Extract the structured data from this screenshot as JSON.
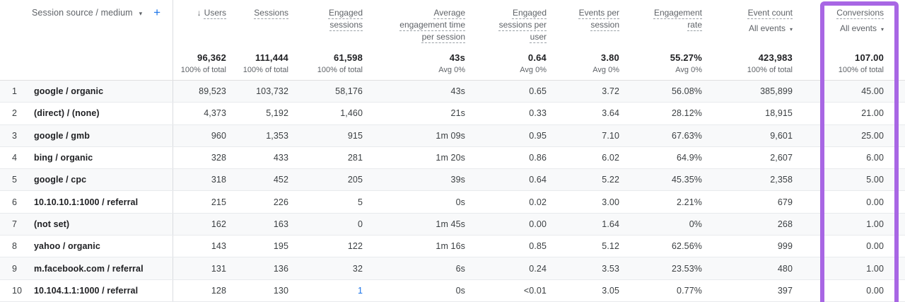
{
  "icons": {
    "caret_down": "▾",
    "plus": "+",
    "sort_desc": "↓"
  },
  "colors": {
    "annotation_purple": "#a866e4",
    "link_blue": "#1a73e8",
    "header_gray": "#5f6368",
    "text_dark": "#202124",
    "stripe_gray": "#f8f9fa"
  },
  "table": {
    "dimension_header": {
      "label": "Session source / medium"
    },
    "columns": [
      {
        "label": "Users",
        "sorted": true,
        "total": "96,362",
        "sub": "100% of total"
      },
      {
        "label": "Sessions",
        "total": "111,444",
        "sub": "100% of total"
      },
      {
        "label": "Engaged sessions",
        "total": "61,598",
        "sub": "100% of total"
      },
      {
        "label": "Average engagement time per session",
        "total": "43s",
        "sub": "Avg 0%"
      },
      {
        "label": "Engaged sessions per user",
        "total": "0.64",
        "sub": "Avg 0%"
      },
      {
        "label": "Events per session",
        "total": "3.80",
        "sub": "Avg 0%"
      },
      {
        "label": "Engagement rate",
        "total": "55.27%",
        "sub": "Avg 0%"
      },
      {
        "label": "Event count",
        "dropdown": "All events",
        "total": "423,983",
        "sub": "100% of total"
      },
      {
        "label": "Conversions",
        "dropdown": "All events",
        "total": "107.00",
        "sub": "100% of total",
        "highlighted": true
      }
    ],
    "rows": [
      {
        "index": "1",
        "dimension": "google / organic",
        "values": [
          "89,523",
          "103,732",
          "58,176",
          "43s",
          "0.65",
          "3.72",
          "56.08%",
          "385,899",
          "45.00"
        ]
      },
      {
        "index": "2",
        "dimension": "(direct) / (none)",
        "values": [
          "4,373",
          "5,192",
          "1,460",
          "21s",
          "0.33",
          "3.64",
          "28.12%",
          "18,915",
          "21.00"
        ]
      },
      {
        "index": "3",
        "dimension": "google / gmb",
        "values": [
          "960",
          "1,353",
          "915",
          "1m 09s",
          "0.95",
          "7.10",
          "67.63%",
          "9,601",
          "25.00"
        ]
      },
      {
        "index": "4",
        "dimension": "bing / organic",
        "values": [
          "328",
          "433",
          "281",
          "1m 20s",
          "0.86",
          "6.02",
          "64.9%",
          "2,607",
          "6.00"
        ]
      },
      {
        "index": "5",
        "dimension": "google / cpc",
        "values": [
          "318",
          "452",
          "205",
          "39s",
          "0.64",
          "5.22",
          "45.35%",
          "2,358",
          "5.00"
        ]
      },
      {
        "index": "6",
        "dimension": "10.10.10.1:1000 / referral",
        "values": [
          "215",
          "226",
          "5",
          "0s",
          "0.02",
          "3.00",
          "2.21%",
          "679",
          "0.00"
        ]
      },
      {
        "index": "7",
        "dimension": "(not set)",
        "values": [
          "162",
          "163",
          "0",
          "1m 45s",
          "0.00",
          "1.64",
          "0%",
          "268",
          "1.00"
        ]
      },
      {
        "index": "8",
        "dimension": "yahoo / organic",
        "values": [
          "143",
          "195",
          "122",
          "1m 16s",
          "0.85",
          "5.12",
          "62.56%",
          "999",
          "0.00"
        ]
      },
      {
        "index": "9",
        "dimension": "m.facebook.com / referral",
        "values": [
          "131",
          "136",
          "32",
          "6s",
          "0.24",
          "3.53",
          "23.53%",
          "480",
          "1.00"
        ]
      },
      {
        "index": "10",
        "dimension": "10.104.1.1:1000 / referral",
        "values": [
          "128",
          "130",
          "1",
          "0s",
          "<0.01",
          "3.05",
          "0.77%",
          "397",
          "0.00"
        ],
        "selected_value_index": 2
      }
    ]
  }
}
